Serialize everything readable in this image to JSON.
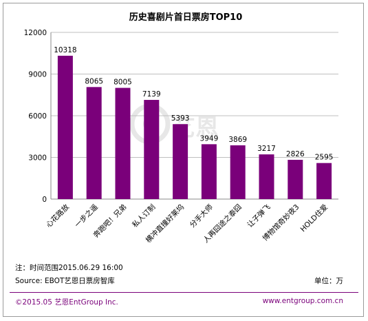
{
  "chart_data": {
    "type": "bar",
    "title": "历史喜剧片首日票房TOP10",
    "categories": [
      "心花路放",
      "一步之遥",
      "奔跑吧！兄弟",
      "私人订制",
      "横冲直撞好莱坞",
      "分手大师",
      "人再囧途之泰囧",
      "让子弹飞",
      "博物馆奇妙夜3",
      "HOLD住爱"
    ],
    "values": [
      10318,
      8065,
      8005,
      7139,
      5393,
      3949,
      3869,
      3217,
      2826,
      2595
    ],
    "ylim": [
      0,
      12000
    ],
    "yticks": [
      0,
      3000,
      6000,
      9000,
      12000
    ],
    "grid": true,
    "bar_color": "#7a007a",
    "xlabel": "",
    "ylabel": ""
  },
  "notes": {
    "time_range": "注：时间范围2015.06.29  16:00",
    "source": "Source: EBOT艺恩日票房智库",
    "unit": "单位：万"
  },
  "footer": {
    "copyright": "©2015.05 艺恩EntGroup Inc.",
    "website": "www.entgroup.com.cn",
    "accent_color": "#7a007a"
  },
  "watermark": {
    "text": "艺恩"
  }
}
